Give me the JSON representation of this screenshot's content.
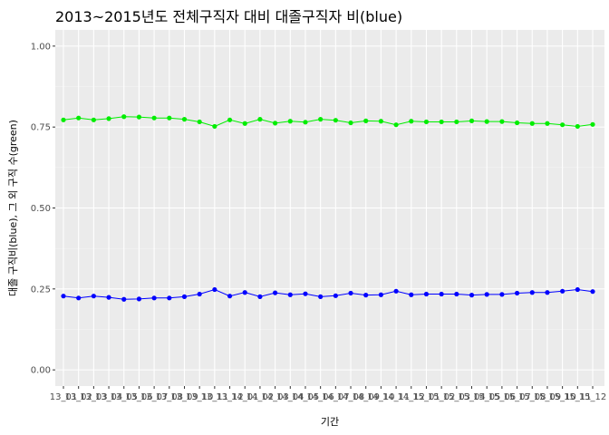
{
  "chart_data": {
    "type": "line",
    "title": "2013~2015년도 전체구직자 대비 대졸구직자 비(blue)",
    "xlabel": "기간",
    "ylabel": "대졸 구직비(blue), 그 외 구직 수(green)",
    "ylim": [
      -0.05,
      1.05
    ],
    "yticks": [
      0.0,
      0.25,
      0.5,
      0.75,
      1.0
    ],
    "ytick_labels": [
      "0.00",
      "0.25",
      "0.50",
      "0.75",
      "1.00"
    ],
    "grid": true,
    "legend": "none",
    "categories": [
      "13_01",
      "13_02",
      "13_03",
      "13_04",
      "13_05",
      "13_06",
      "13_07",
      "13_08",
      "13_09",
      "13_10",
      "13_11",
      "13_12",
      "14_01",
      "14_02",
      "14_03",
      "14_04",
      "14_05",
      "14_06",
      "14_07",
      "14_08",
      "14_09",
      "14_10",
      "14_11",
      "14_12",
      "15_01",
      "15_02",
      "15_03",
      "15_04",
      "15_05",
      "15_06",
      "15_07",
      "15_08",
      "15_09",
      "15_10",
      "15_11",
      "15_12"
    ],
    "series": [
      {
        "color": "#00EE00",
        "values": [
          0.772,
          0.778,
          0.772,
          0.776,
          0.782,
          0.781,
          0.778,
          0.778,
          0.774,
          0.766,
          0.752,
          0.772,
          0.761,
          0.774,
          0.762,
          0.768,
          0.765,
          0.774,
          0.771,
          0.763,
          0.769,
          0.768,
          0.757,
          0.768,
          0.766,
          0.766,
          0.766,
          0.769,
          0.767,
          0.767,
          0.763,
          0.761,
          0.761,
          0.757,
          0.752,
          0.758
        ]
      },
      {
        "color": "#0000FF",
        "values": [
          0.228,
          0.222,
          0.228,
          0.224,
          0.218,
          0.219,
          0.222,
          0.222,
          0.226,
          0.234,
          0.248,
          0.228,
          0.239,
          0.226,
          0.238,
          0.232,
          0.235,
          0.226,
          0.229,
          0.237,
          0.231,
          0.232,
          0.243,
          0.232,
          0.234,
          0.234,
          0.234,
          0.231,
          0.233,
          0.233,
          0.237,
          0.239,
          0.239,
          0.243,
          0.248,
          0.242
        ]
      }
    ]
  }
}
